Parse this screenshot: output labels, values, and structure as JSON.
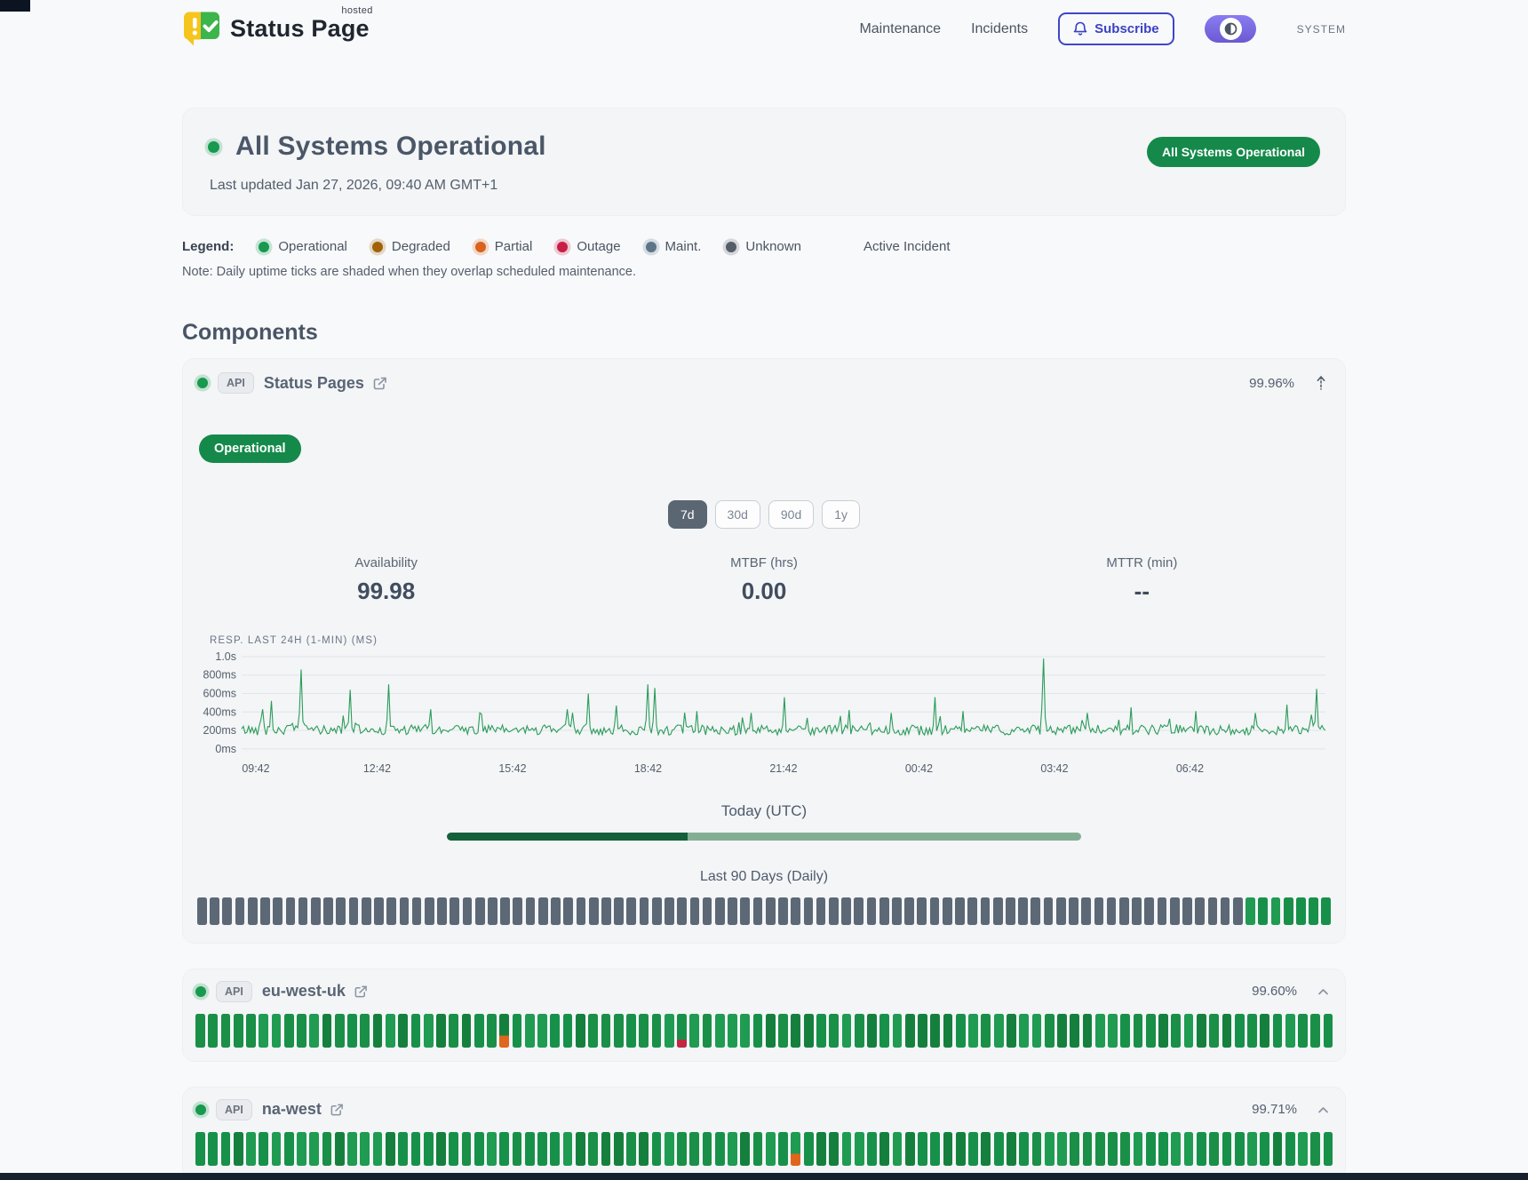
{
  "header": {
    "brand": {
      "name": "Status Page",
      "superscript": "hosted"
    },
    "nav": [
      {
        "label": "Maintenance"
      },
      {
        "label": "Incidents"
      }
    ],
    "subscribe_label": "Subscribe",
    "mode_label": "SYSTEM"
  },
  "hero": {
    "title": "All Systems Operational",
    "last_updated": "Last updated Jan 27, 2026, 09:40 AM GMT+1",
    "badge": "All Systems Operational",
    "status_color": "#17994e"
  },
  "legend": {
    "label": "Legend:",
    "items": [
      {
        "label": "Operational",
        "color": "#17994e"
      },
      {
        "label": "Degraded",
        "color": "#a16207"
      },
      {
        "label": "Partial",
        "color": "#d9621c"
      },
      {
        "label": "Outage",
        "color": "#c81e45"
      },
      {
        "label": "Maint.",
        "color": "#5d7587"
      },
      {
        "label": "Unknown",
        "color": "#555e68"
      }
    ],
    "active_incident_label": "Active Incident",
    "note": "Note: Daily uptime ticks are shaded when they overlap scheduled maintenance."
  },
  "components": {
    "title": "Components",
    "expanded": {
      "type_badge": "API",
      "name": "Status Pages",
      "uptime": "99.96%",
      "status_badge": "Operational",
      "status_color": "#17994e",
      "ranges": [
        "7d",
        "30d",
        "90d",
        "1y"
      ],
      "selected_range": "7d",
      "metrics": [
        {
          "label": "Availability",
          "value": "99.98"
        },
        {
          "label": "MTBF (hrs)",
          "value": "0.00"
        },
        {
          "label": "MTTR (min)",
          "value": "--"
        }
      ],
      "today_label": "Today (UTC)",
      "today_progress_pct": 38,
      "history_label": "Last 90 Days (Daily)",
      "ticks_runs": [
        [
          "nodata",
          83
        ],
        [
          "op",
          7
        ]
      ]
    },
    "collapsed": [
      {
        "type_badge": "API",
        "name": "eu-west-uk",
        "uptime": "99.60%",
        "status_color": "#17994e",
        "ticks_runs": [
          [
            "op",
            24
          ],
          [
            "partial",
            1
          ],
          [
            "op",
            13
          ],
          [
            "outage",
            1
          ],
          [
            "op",
            51
          ]
        ]
      },
      {
        "type_badge": "API",
        "name": "na-west",
        "uptime": "99.71%",
        "status_color": "#17994e",
        "ticks_runs": [
          [
            "op",
            47
          ],
          [
            "partial",
            1
          ],
          [
            "op",
            42
          ]
        ]
      }
    ]
  },
  "chart_data": {
    "type": "line",
    "title": "RESP. LAST 24H (1-MIN) (MS)",
    "line_color": "#2b9b59",
    "x_ticks": [
      "09:42",
      "12:42",
      "15:42",
      "18:42",
      "21:42",
      "00:42",
      "03:42",
      "06:42"
    ],
    "y_ticks": [
      {
        "label": "1.0s",
        "value": 1000
      },
      {
        "label": "800ms",
        "value": 800
      },
      {
        "label": "600ms",
        "value": 600
      },
      {
        "label": "400ms",
        "value": 400
      },
      {
        "label": "200ms",
        "value": 200
      },
      {
        "label": "0ms",
        "value": 0
      }
    ],
    "ylim": [
      0,
      1000
    ],
    "baseline_ms": [
      150,
      260
    ],
    "grid": true,
    "spikes": [
      {
        "t": 0.02,
        "y": 430
      },
      {
        "t": 0.028,
        "y": 520
      },
      {
        "t": 0.055,
        "y": 860
      },
      {
        "t": 0.1,
        "y": 640
      },
      {
        "t": 0.135,
        "y": 700
      },
      {
        "t": 0.175,
        "y": 430
      },
      {
        "t": 0.22,
        "y": 390
      },
      {
        "t": 0.3,
        "y": 430
      },
      {
        "t": 0.32,
        "y": 600
      },
      {
        "t": 0.345,
        "y": 470
      },
      {
        "t": 0.374,
        "y": 700
      },
      {
        "t": 0.382,
        "y": 660
      },
      {
        "t": 0.42,
        "y": 410
      },
      {
        "t": 0.47,
        "y": 390
      },
      {
        "t": 0.5,
        "y": 560
      },
      {
        "t": 0.56,
        "y": 420
      },
      {
        "t": 0.6,
        "y": 390
      },
      {
        "t": 0.64,
        "y": 560
      },
      {
        "t": 0.665,
        "y": 410
      },
      {
        "t": 0.74,
        "y": 980
      },
      {
        "t": 0.78,
        "y": 390
      },
      {
        "t": 0.82,
        "y": 450
      },
      {
        "t": 0.88,
        "y": 410
      },
      {
        "t": 0.935,
        "y": 390
      },
      {
        "t": 0.965,
        "y": 480
      },
      {
        "t": 0.992,
        "y": 650
      }
    ]
  },
  "tick_colors": {
    "op": [
      "#15803d",
      "#1a8f47",
      "#17914a",
      "#1f9b52"
    ],
    "nodata": "#5d6876",
    "partial_bottom": "#e0661b",
    "outage_bottom": "#c22743"
  }
}
